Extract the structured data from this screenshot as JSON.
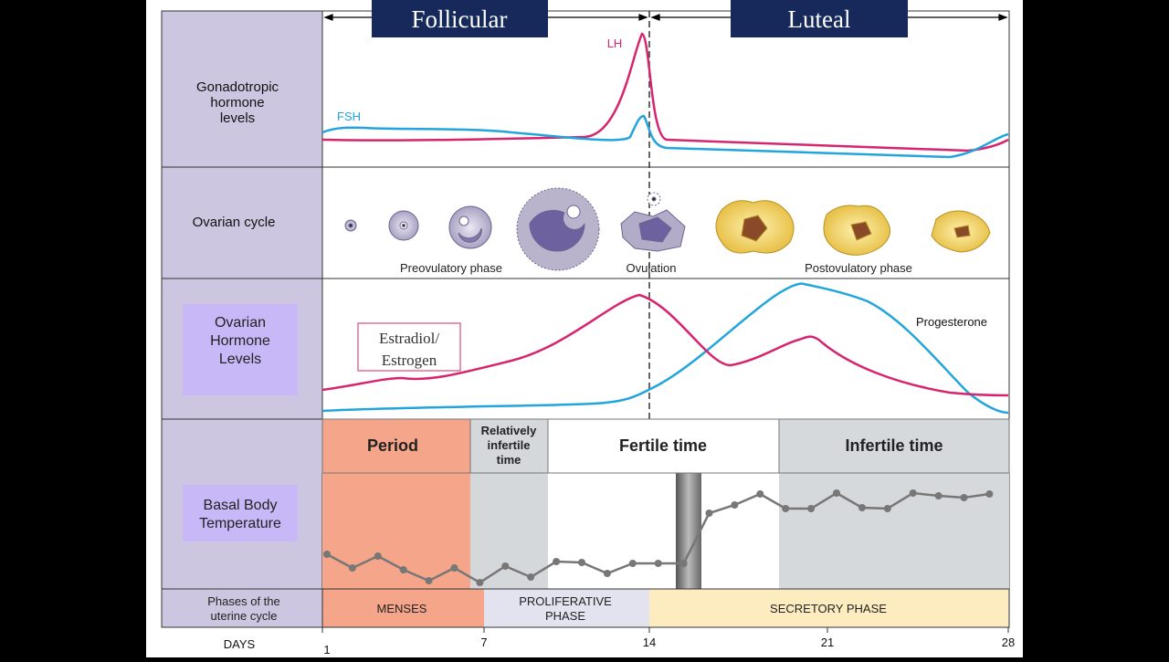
{
  "tabs": {
    "follicular": "Follicular",
    "luteal": "Luteal"
  },
  "rows": {
    "gonadotropic": {
      "label": [
        "Gonadotropic",
        "hormone",
        "levels"
      ],
      "lh": "LH",
      "fsh": "FSH"
    },
    "ovarian_cycle": {
      "label": "Ovarian cycle",
      "preovulatory": "Preovulatory phase",
      "ovulation": "Ovulation",
      "postovulatory": "Postovulatory phase"
    },
    "ovarian_hormones": {
      "label": [
        "Ovarian",
        "Hormone",
        "Levels"
      ],
      "estradiol": [
        "Estradiol/",
        "Estrogen"
      ],
      "progesterone": "Progesterone"
    },
    "bbt": {
      "label": [
        "Basal Body",
        "Temperature"
      ],
      "period": "Period",
      "relatively_infertile": [
        "Relatively",
        "infertile",
        "time"
      ],
      "fertile": "Fertile time",
      "infertile": "Infertile time"
    },
    "uterine": {
      "label": [
        "Phases of the",
        "uterine cycle"
      ],
      "menses": "MENSES",
      "proliferative": [
        "PROLIFERATIVE",
        "PHASE"
      ],
      "secretory": "SECRETORY PHASE"
    }
  },
  "days": {
    "label": "DAYS",
    "ticks": [
      "1",
      "7",
      "14",
      "21",
      "28"
    ]
  }
}
